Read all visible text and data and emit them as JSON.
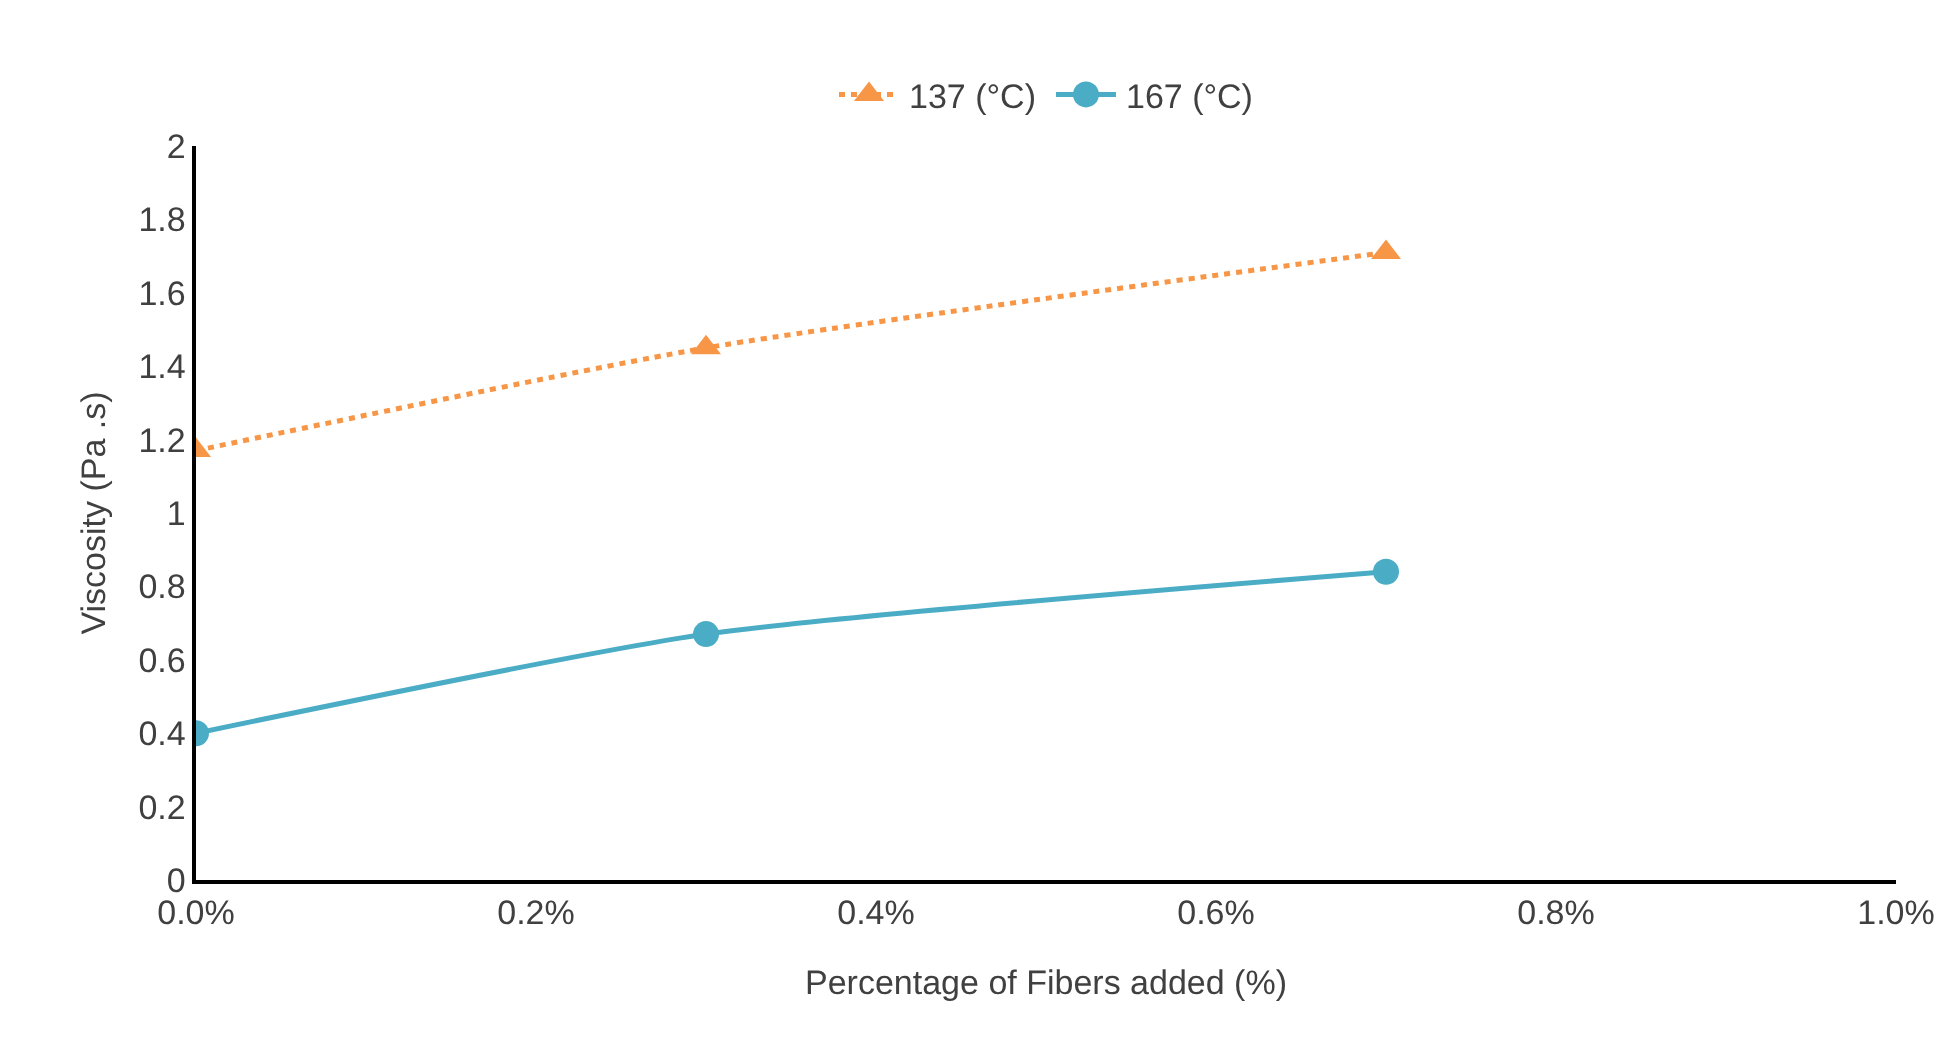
{
  "chart_data": {
    "type": "line",
    "xlabel": "Percentage of Fibers added (%)",
    "ylabel": "Viscosity (Pa .s)",
    "x": [
      0,
      0.3,
      0.7
    ],
    "series": [
      {
        "name": "137 (°C)",
        "color": "#f79646",
        "values": [
          1.17,
          1.45,
          1.71
        ],
        "marker": "triangle",
        "line_style": "dotted"
      },
      {
        "name": "167 (°C)",
        "color": "#4bacc6",
        "values": [
          0.4,
          0.67,
          0.84
        ],
        "marker": "circle",
        "line_style": "solid"
      }
    ],
    "xlim": [
      0,
      1
    ],
    "xticks": [
      {
        "value": 0,
        "label": "0.0%"
      },
      {
        "value": 0.2,
        "label": "0.2%"
      },
      {
        "value": 0.4,
        "label": "0.4%"
      },
      {
        "value": 0.6,
        "label": "0.6%"
      },
      {
        "value": 0.8,
        "label": "0.8%"
      },
      {
        "value": 1,
        "label": "1.0%"
      }
    ],
    "ylim": [
      0,
      2
    ],
    "yticks": [
      0,
      0.2,
      0.4,
      0.6,
      0.8,
      1,
      1.2,
      1.4,
      1.6,
      1.8,
      2
    ],
    "grid": false,
    "legend": "top"
  }
}
